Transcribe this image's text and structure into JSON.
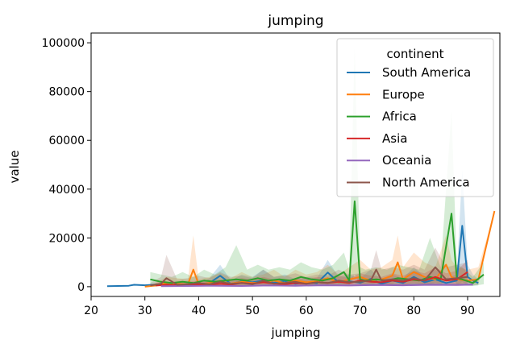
{
  "chart_data": {
    "type": "line",
    "title": "jumping",
    "xlabel": "jumping",
    "ylabel": "value",
    "xlim": [
      20,
      96
    ],
    "ylim": [
      -4000,
      104000
    ],
    "xticks": [
      20,
      30,
      40,
      50,
      60,
      70,
      80,
      90
    ],
    "yticks": [
      0,
      20000,
      40000,
      60000,
      80000,
      100000
    ],
    "grid": false,
    "legend": {
      "title": "continent",
      "placement": "top-right"
    },
    "series": [
      {
        "name": "South America",
        "color": "#1f77b4",
        "x": [
          23,
          25,
          27,
          28,
          30,
          32,
          34,
          36,
          38,
          40,
          42,
          44,
          46,
          48,
          50,
          52,
          54,
          56,
          58,
          60,
          62,
          64,
          66,
          68,
          70,
          72,
          74,
          76,
          78,
          80,
          82,
          84,
          86,
          88,
          89,
          90,
          91,
          92
        ],
        "y": [
          200,
          300,
          400,
          800,
          600,
          900,
          1200,
          700,
          1100,
          900,
          1500,
          4500,
          1200,
          2200,
          1800,
          2500,
          1600,
          2400,
          1200,
          1800,
          1400,
          5800,
          1800,
          2200,
          1600,
          3200,
          1200,
          2500,
          1500,
          4000,
          1800,
          3000,
          1500,
          2500,
          25000,
          4000,
          2500,
          1500
        ],
        "band": [
          [
            200,
            200
          ],
          [
            300,
            300
          ],
          [
            400,
            400
          ],
          [
            800,
            800
          ],
          [
            600,
            600
          ],
          [
            900,
            900
          ],
          [
            1200,
            1200
          ],
          [
            700,
            700
          ],
          [
            1100,
            1100
          ],
          [
            900,
            900
          ],
          [
            500,
            3500
          ],
          [
            1000,
            9000
          ],
          [
            500,
            2500
          ],
          [
            500,
            5000
          ],
          [
            500,
            4000
          ],
          [
            500,
            7000
          ],
          [
            500,
            4000
          ],
          [
            500,
            5000
          ],
          [
            500,
            3000
          ],
          [
            500,
            4000
          ],
          [
            500,
            3500
          ],
          [
            800,
            11000
          ],
          [
            500,
            4000
          ],
          [
            500,
            5000
          ],
          [
            500,
            3500
          ],
          [
            800,
            7000
          ],
          [
            500,
            3000
          ],
          [
            500,
            5000
          ],
          [
            500,
            3500
          ],
          [
            800,
            8000
          ],
          [
            500,
            4000
          ],
          [
            500,
            7000
          ],
          [
            500,
            3500
          ],
          [
            500,
            5000
          ],
          [
            2000,
            48000
          ],
          [
            500,
            9000
          ],
          [
            500,
            5000
          ],
          [
            500,
            3000
          ]
        ]
      },
      {
        "name": "Europe",
        "color": "#ff7f0e",
        "x": [
          30,
          32,
          34,
          36,
          38,
          39,
          40,
          42,
          44,
          46,
          48,
          50,
          52,
          54,
          56,
          58,
          60,
          62,
          64,
          66,
          68,
          70,
          72,
          74,
          76,
          77,
          78,
          80,
          82,
          84,
          86,
          87,
          88,
          90,
          92,
          95
        ],
        "y": [
          0,
          500,
          1500,
          1200,
          1000,
          7000,
          1000,
          1500,
          2000,
          1300,
          2000,
          1500,
          1800,
          2500,
          1500,
          2500,
          1800,
          2200,
          3500,
          1800,
          3000,
          4000,
          2500,
          3000,
          4500,
          10000,
          3000,
          6000,
          4000,
          3000,
          9000,
          4000,
          3000,
          2500,
          3000,
          31000
        ],
        "band": [
          [
            0,
            0
          ],
          [
            0,
            1500
          ],
          [
            500,
            4000
          ],
          [
            300,
            3500
          ],
          [
            300,
            3000
          ],
          [
            1000,
            21000
          ],
          [
            300,
            3000
          ],
          [
            500,
            4000
          ],
          [
            500,
            5500
          ],
          [
            300,
            3500
          ],
          [
            500,
            6000
          ],
          [
            500,
            4000
          ],
          [
            500,
            5000
          ],
          [
            800,
            7000
          ],
          [
            500,
            4000
          ],
          [
            800,
            7000
          ],
          [
            500,
            5000
          ],
          [
            500,
            6000
          ],
          [
            800,
            9000
          ],
          [
            500,
            5000
          ],
          [
            800,
            8000
          ],
          [
            1000,
            11000
          ],
          [
            800,
            7000
          ],
          [
            800,
            8000
          ],
          [
            1000,
            11000
          ],
          [
            2500,
            21000
          ],
          [
            800,
            8000
          ],
          [
            1500,
            14000
          ],
          [
            800,
            10000
          ],
          [
            800,
            8000
          ],
          [
            2000,
            21000
          ],
          [
            800,
            11000
          ],
          [
            800,
            8000
          ],
          [
            500,
            7000
          ],
          [
            800,
            8000
          ],
          [
            31000,
            31000
          ]
        ]
      },
      {
        "name": "Africa",
        "color": "#2ca02c",
        "x": [
          31,
          33,
          35,
          37,
          39,
          41,
          43,
          45,
          47,
          49,
          51,
          53,
          55,
          57,
          59,
          61,
          63,
          65,
          67,
          68,
          69,
          70,
          71,
          73,
          75,
          77,
          79,
          81,
          83,
          85,
          87,
          88,
          89,
          91,
          93
        ],
        "y": [
          3000,
          2000,
          1500,
          2000,
          1500,
          2500,
          2000,
          2500,
          3000,
          2500,
          3500,
          2500,
          3000,
          2500,
          4000,
          3000,
          2500,
          3500,
          6000,
          2500,
          35000,
          3000,
          2500,
          3000,
          2500,
          3500,
          3000,
          2500,
          4000,
          3000,
          30000,
          3500,
          3000,
          1500,
          5000
        ],
        "band": [
          [
            500,
            6000
          ],
          [
            500,
            5000
          ],
          [
            300,
            4000
          ],
          [
            500,
            6000
          ],
          [
            300,
            4000
          ],
          [
            500,
            7000
          ],
          [
            500,
            5000
          ],
          [
            500,
            8000
          ],
          [
            500,
            17000
          ],
          [
            500,
            7000
          ],
          [
            800,
            9000
          ],
          [
            500,
            7000
          ],
          [
            500,
            8000
          ],
          [
            500,
            7000
          ],
          [
            800,
            10000
          ],
          [
            500,
            8000
          ],
          [
            500,
            7000
          ],
          [
            800,
            9000
          ],
          [
            1000,
            14000
          ],
          [
            500,
            7000
          ],
          [
            5000,
            98000
          ],
          [
            500,
            8000
          ],
          [
            500,
            7000
          ],
          [
            500,
            8000
          ],
          [
            500,
            7000
          ],
          [
            800,
            9000
          ],
          [
            500,
            8000
          ],
          [
            500,
            7000
          ],
          [
            800,
            20000
          ],
          [
            500,
            8000
          ],
          [
            5000,
            72000
          ],
          [
            800,
            9000
          ],
          [
            500,
            8000
          ],
          [
            300,
            4000
          ],
          [
            1000,
            10000
          ]
        ]
      },
      {
        "name": "Asia",
        "color": "#d62728",
        "x": [
          32,
          34,
          36,
          38,
          40,
          42,
          44,
          46,
          48,
          50,
          52,
          54,
          56,
          58,
          60,
          62,
          64,
          66,
          68,
          70,
          72,
          74,
          76,
          78,
          80,
          82,
          84,
          86,
          88,
          90
        ],
        "y": [
          500,
          800,
          600,
          700,
          1000,
          800,
          1200,
          900,
          1500,
          1200,
          1800,
          1300,
          1000,
          1500,
          1200,
          1800,
          1500,
          2000,
          1500,
          2500,
          2000,
          1800,
          2500,
          2000,
          3000,
          2500,
          4000,
          2500,
          3000,
          6000
        ],
        "band": [
          [
            200,
            1500
          ],
          [
            300,
            2000
          ],
          [
            200,
            1500
          ],
          [
            200,
            2000
          ],
          [
            300,
            2500
          ],
          [
            300,
            2000
          ],
          [
            300,
            3000
          ],
          [
            300,
            2500
          ],
          [
            500,
            3500
          ],
          [
            300,
            3000
          ],
          [
            500,
            4000
          ],
          [
            300,
            3000
          ],
          [
            300,
            2500
          ],
          [
            500,
            3500
          ],
          [
            300,
            3000
          ],
          [
            500,
            4000
          ],
          [
            500,
            3500
          ],
          [
            500,
            4500
          ],
          [
            500,
            3500
          ],
          [
            800,
            5500
          ],
          [
            500,
            4500
          ],
          [
            500,
            4000
          ],
          [
            800,
            5500
          ],
          [
            500,
            4500
          ],
          [
            800,
            6500
          ],
          [
            800,
            5500
          ],
          [
            1000,
            8000
          ],
          [
            800,
            5500
          ],
          [
            800,
            6500
          ],
          [
            1500,
            11000
          ]
        ]
      },
      {
        "name": "Oceania",
        "color": "#9467bd",
        "x": [
          33,
          38,
          43,
          48,
          53,
          58,
          63,
          68,
          73,
          78,
          83,
          88,
          91
        ],
        "y": [
          200,
          300,
          400,
          300,
          500,
          400,
          600,
          500,
          700,
          600,
          800,
          700,
          900
        ],
        "band": [
          [
            100,
            500
          ],
          [
            100,
            700
          ],
          [
            100,
            900
          ],
          [
            100,
            700
          ],
          [
            200,
            1100
          ],
          [
            100,
            900
          ],
          [
            200,
            1300
          ],
          [
            200,
            1100
          ],
          [
            300,
            1500
          ],
          [
            200,
            1300
          ],
          [
            300,
            1700
          ],
          [
            300,
            1500
          ],
          [
            400,
            1900
          ]
        ]
      },
      {
        "name": "North America",
        "color": "#8c564b",
        "x": [
          31,
          33,
          34,
          36,
          38,
          40,
          42,
          44,
          46,
          48,
          50,
          52,
          54,
          56,
          58,
          60,
          62,
          64,
          66,
          68,
          70,
          72,
          73,
          74,
          76,
          78,
          80,
          82,
          84,
          86,
          88,
          90
        ],
        "y": [
          500,
          1200,
          3500,
          800,
          1000,
          1500,
          1000,
          2000,
          1200,
          1500,
          1000,
          2500,
          1200,
          1500,
          2000,
          1200,
          1800,
          1500,
          2500,
          1800,
          2000,
          2500,
          7000,
          2500,
          3000,
          2500,
          3500,
          2500,
          8000,
          3000,
          3500,
          4000
        ],
        "band": [
          [
            200,
            1500
          ],
          [
            300,
            4000
          ],
          [
            500,
            13000
          ],
          [
            200,
            3000
          ],
          [
            300,
            3500
          ],
          [
            500,
            4500
          ],
          [
            300,
            3500
          ],
          [
            500,
            6000
          ],
          [
            300,
            4000
          ],
          [
            500,
            4500
          ],
          [
            300,
            3500
          ],
          [
            500,
            7000
          ],
          [
            300,
            4000
          ],
          [
            500,
            4500
          ],
          [
            500,
            5500
          ],
          [
            300,
            4000
          ],
          [
            500,
            5000
          ],
          [
            500,
            4500
          ],
          [
            500,
            7000
          ],
          [
            500,
            5000
          ],
          [
            500,
            5500
          ],
          [
            500,
            7000
          ],
          [
            1500,
            15000
          ],
          [
            500,
            7000
          ],
          [
            800,
            8000
          ],
          [
            500,
            7000
          ],
          [
            800,
            9000
          ],
          [
            500,
            7000
          ],
          [
            1500,
            16000
          ],
          [
            800,
            8000
          ],
          [
            800,
            9000
          ],
          [
            1000,
            10000
          ]
        ]
      }
    ]
  }
}
